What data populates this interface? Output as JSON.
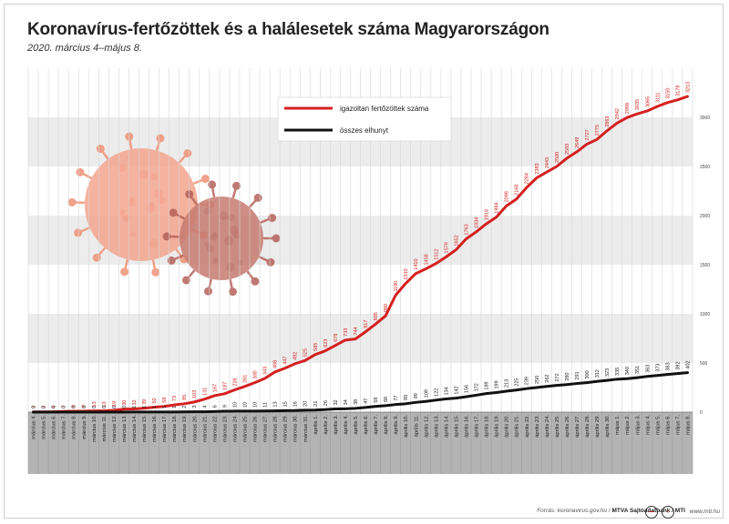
{
  "header": {
    "title": "Koronavírus-fertőzöttek és a halálesetek száma Magyarországon",
    "subtitle": "2020. március 4–május 8."
  },
  "footer": {
    "source_prefix": "Forrás: ",
    "source_text": "koronavirus.gov.hu / ",
    "brand": "MTVA Sajtóadatbank / MTI",
    "url": "www.mti.hu",
    "logo_icons": [
      "mtva-logo-icon",
      "mti-logo-icon"
    ]
  },
  "colors": {
    "infected": "#d42020",
    "deaths": "#111111",
    "band": "#ececec",
    "bottom": "#b3b3b3",
    "virus_main": "#f4a58e",
    "virus_dark": "#b5625a"
  },
  "chart_data": {
    "type": "line",
    "ylim": [
      0,
      3500
    ],
    "yticks": [
      0,
      500,
      1000,
      1500,
      2000,
      2500,
      3000
    ],
    "grid": true,
    "legend_position": "top-center",
    "categories": [
      "március 4.",
      "március 5.",
      "március 6.",
      "március 7.",
      "március 8.",
      "március 9.",
      "március 10.",
      "március 11.",
      "március 12.",
      "március 13.",
      "március 14.",
      "március 15.",
      "március 16.",
      "március 17.",
      "március 18.",
      "március 19.",
      "március 20.",
      "március 21.",
      "március 22.",
      "március 23.",
      "március 24.",
      "március 25.",
      "március 26.",
      "március 27.",
      "március 28.",
      "március 29.",
      "március 30.",
      "március 31.",
      "április 1.",
      "április 2.",
      "április 3.",
      "április 4.",
      "április 5.",
      "április 6.",
      "április 7.",
      "április 8.",
      "április 9.",
      "április 10.",
      "április 11.",
      "április 12.",
      "április 13.",
      "április 14.",
      "április 15.",
      "április 16.",
      "április 17.",
      "április 18.",
      "április 19.",
      "április 20.",
      "április 21.",
      "április 22.",
      "április 23.",
      "április 24.",
      "április 25.",
      "április 26.",
      "április 27.",
      "április 28.",
      "április 29.",
      "április 30.",
      "május 1.",
      "május 2.",
      "május 3.",
      "május 4.",
      "május 5.",
      "május 6.",
      "május 7.",
      "május 8."
    ],
    "series": [
      {
        "name": "igazoltan fertőzöttek száma",
        "values": [
          2,
          2,
          4,
          7,
          9,
          9,
          13,
          13,
          19,
          30,
          32,
          39,
          50,
          58,
          73,
          85,
          103,
          131,
          167,
          187,
          226,
          261,
          300,
          343,
          408,
          447,
          492,
          525,
          585,
          623,
          678,
          733,
          744,
          817,
          895,
          980,
          1190,
          1310,
          1410,
          1458,
          1512,
          1579,
          1652,
          1763,
          1834,
          1916,
          1984,
          2098,
          2168,
          2284,
          2383,
          2443,
          2500,
          2583,
          2649,
          2727,
          2775,
          2863,
          2942,
          2998,
          3035,
          3065,
          3111,
          3150,
          3178,
          3213
        ]
      },
      {
        "name": "összes elhunyt",
        "values": [
          0,
          0,
          0,
          0,
          0,
          0,
          0,
          0,
          0,
          0,
          1,
          1,
          1,
          1,
          1,
          2,
          3,
          4,
          6,
          9,
          10,
          10,
          10,
          11,
          13,
          15,
          16,
          20,
          21,
          26,
          32,
          34,
          38,
          47,
          58,
          66,
          77,
          85,
          99,
          109,
          122,
          134,
          142,
          156,
          172,
          189,
          199,
          213,
          225,
          239,
          250,
          262,
          272,
          280,
          291,
          300,
          312,
          323,
          335,
          340,
          351,
          363,
          373,
          383,
          392,
          402
        ]
      }
    ]
  }
}
